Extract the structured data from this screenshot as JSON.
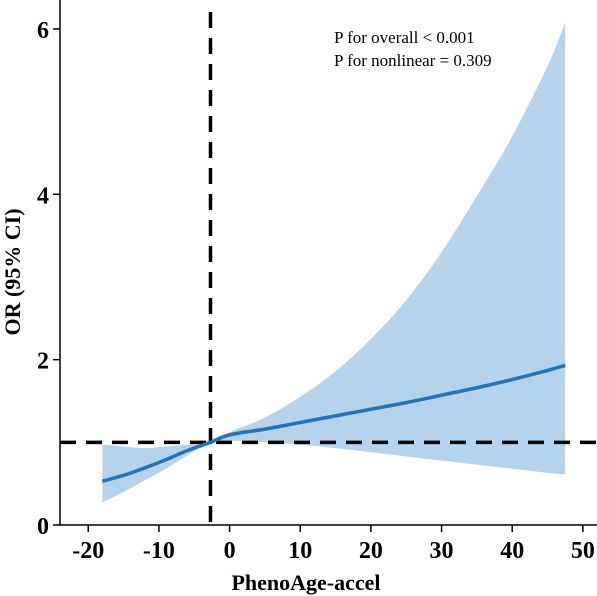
{
  "chart_data": {
    "type": "line",
    "xlabel": "PhenoAge-accel",
    "ylabel": "OR (95% CI)",
    "xlim": [
      -24,
      52
    ],
    "ylim": [
      0,
      6.35
    ],
    "xticks": [
      -20,
      -10,
      0,
      10,
      20,
      30,
      40,
      50
    ],
    "xtick_labels": [
      "-20",
      "-10",
      "0",
      "10",
      "20",
      "30",
      "40",
      "50"
    ],
    "yticks": [
      0,
      2,
      4,
      6
    ],
    "ytick_labels": [
      "0",
      "2",
      "4",
      "6"
    ],
    "grid": false,
    "legend": "none",
    "annotations": [
      "P for overall < 0.001",
      "P for nonlinear = 0.309"
    ],
    "reference_lines": {
      "vertical_x": -2.7,
      "horizontal_y": 1.0
    },
    "colors": {
      "line": "#1f74bf",
      "band": "#b5d3eb",
      "reference": "#000000"
    },
    "series": [
      {
        "x": [
          -18,
          -15,
          -12,
          -9,
          -6,
          -2.7,
          0,
          5,
          10,
          15,
          20,
          25,
          30,
          35,
          40,
          45,
          47.5
        ],
        "y": [
          0.53,
          0.6,
          0.69,
          0.79,
          0.9,
          1.0,
          1.09,
          1.16,
          1.24,
          1.32,
          1.4,
          1.48,
          1.57,
          1.66,
          1.76,
          1.87,
          1.93
        ],
        "lower": [
          0.27,
          0.4,
          0.54,
          0.68,
          0.84,
          1.0,
          1.02,
          1.0,
          0.97,
          0.93,
          0.88,
          0.83,
          0.78,
          0.73,
          0.68,
          0.63,
          0.61
        ],
        "upper": [
          0.97,
          0.95,
          0.93,
          0.95,
          0.97,
          1.0,
          1.12,
          1.3,
          1.55,
          1.86,
          2.25,
          2.72,
          3.3,
          3.98,
          4.7,
          5.55,
          6.08
        ]
      }
    ]
  }
}
